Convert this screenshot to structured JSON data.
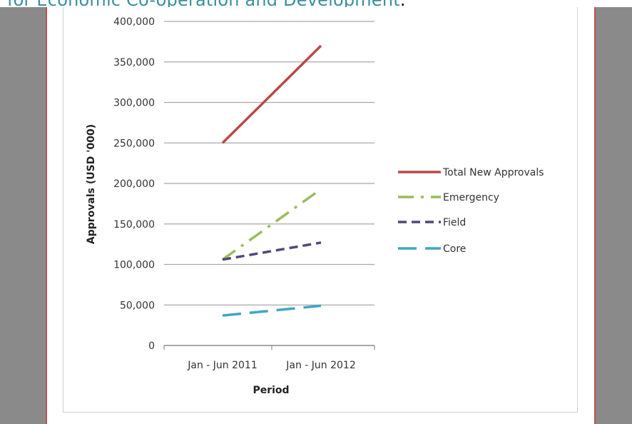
{
  "header": {
    "link_text": "for Economic Co-operation and Development",
    "trailing": "."
  },
  "chart_data": {
    "type": "line",
    "title": "",
    "xlabel": "Period",
    "ylabel": "Approvals (USD '000)",
    "categories": [
      "Jan - Jun 2011",
      "Jan - Jun 2012"
    ],
    "ylim": [
      0,
      400000
    ],
    "yticks": [
      0,
      50000,
      100000,
      150000,
      200000,
      250000,
      300000,
      350000,
      400000
    ],
    "ytick_labels": [
      "0",
      "50,000",
      "100,000",
      "150,000",
      "200,000",
      "250,000",
      "300,000",
      "350,000",
      "400,000"
    ],
    "grid": true,
    "legend_position": "right",
    "series": [
      {
        "name": "Total New Approvals",
        "values": [
          250000,
          370000
        ],
        "color": "#b84a45",
        "dash": "solid"
      },
      {
        "name": "Emergency",
        "values": [
          106000,
          193000
        ],
        "color": "#9bbb59",
        "dash": "dashdot"
      },
      {
        "name": "Field",
        "values": [
          106000,
          127000
        ],
        "color": "#4f4a78",
        "dash": "dash"
      },
      {
        "name": "Core",
        "values": [
          37000,
          49000
        ],
        "color": "#3fa6c4",
        "dash": "longdash"
      }
    ]
  }
}
